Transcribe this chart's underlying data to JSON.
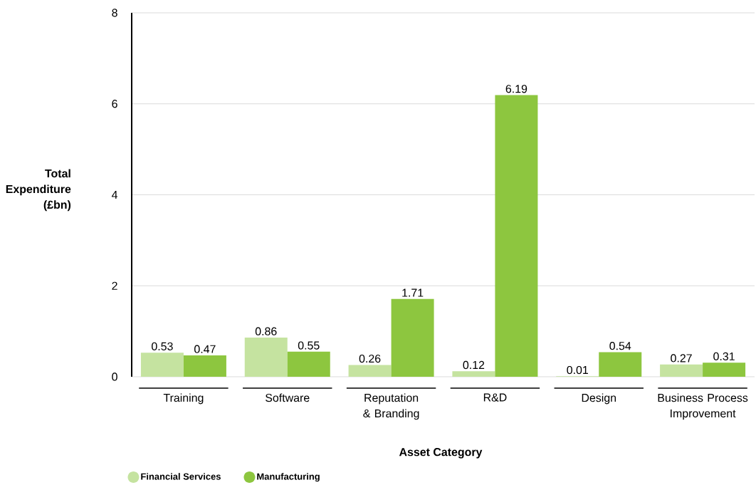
{
  "chart_data": {
    "type": "bar",
    "xlabel": "Asset Category",
    "ylabel": "Total Expenditure (£bn)",
    "categories": [
      "Training",
      "Software",
      "Reputation & Branding",
      "R&D",
      "Design",
      "Business Process Improvement"
    ],
    "series": [
      {
        "name": "Financial Services",
        "color": "#c5e3a0",
        "values": [
          0.53,
          0.86,
          0.26,
          0.12,
          0.01,
          0.27
        ]
      },
      {
        "name": "Manufacturing",
        "color": "#8dc63f",
        "values": [
          0.47,
          0.55,
          1.71,
          6.19,
          0.54,
          0.31
        ]
      }
    ],
    "ylim": [
      0,
      8
    ],
    "yticks": [
      0,
      2,
      4,
      6,
      8
    ],
    "grid": "y",
    "legend": "bottom",
    "data_labels": true
  }
}
